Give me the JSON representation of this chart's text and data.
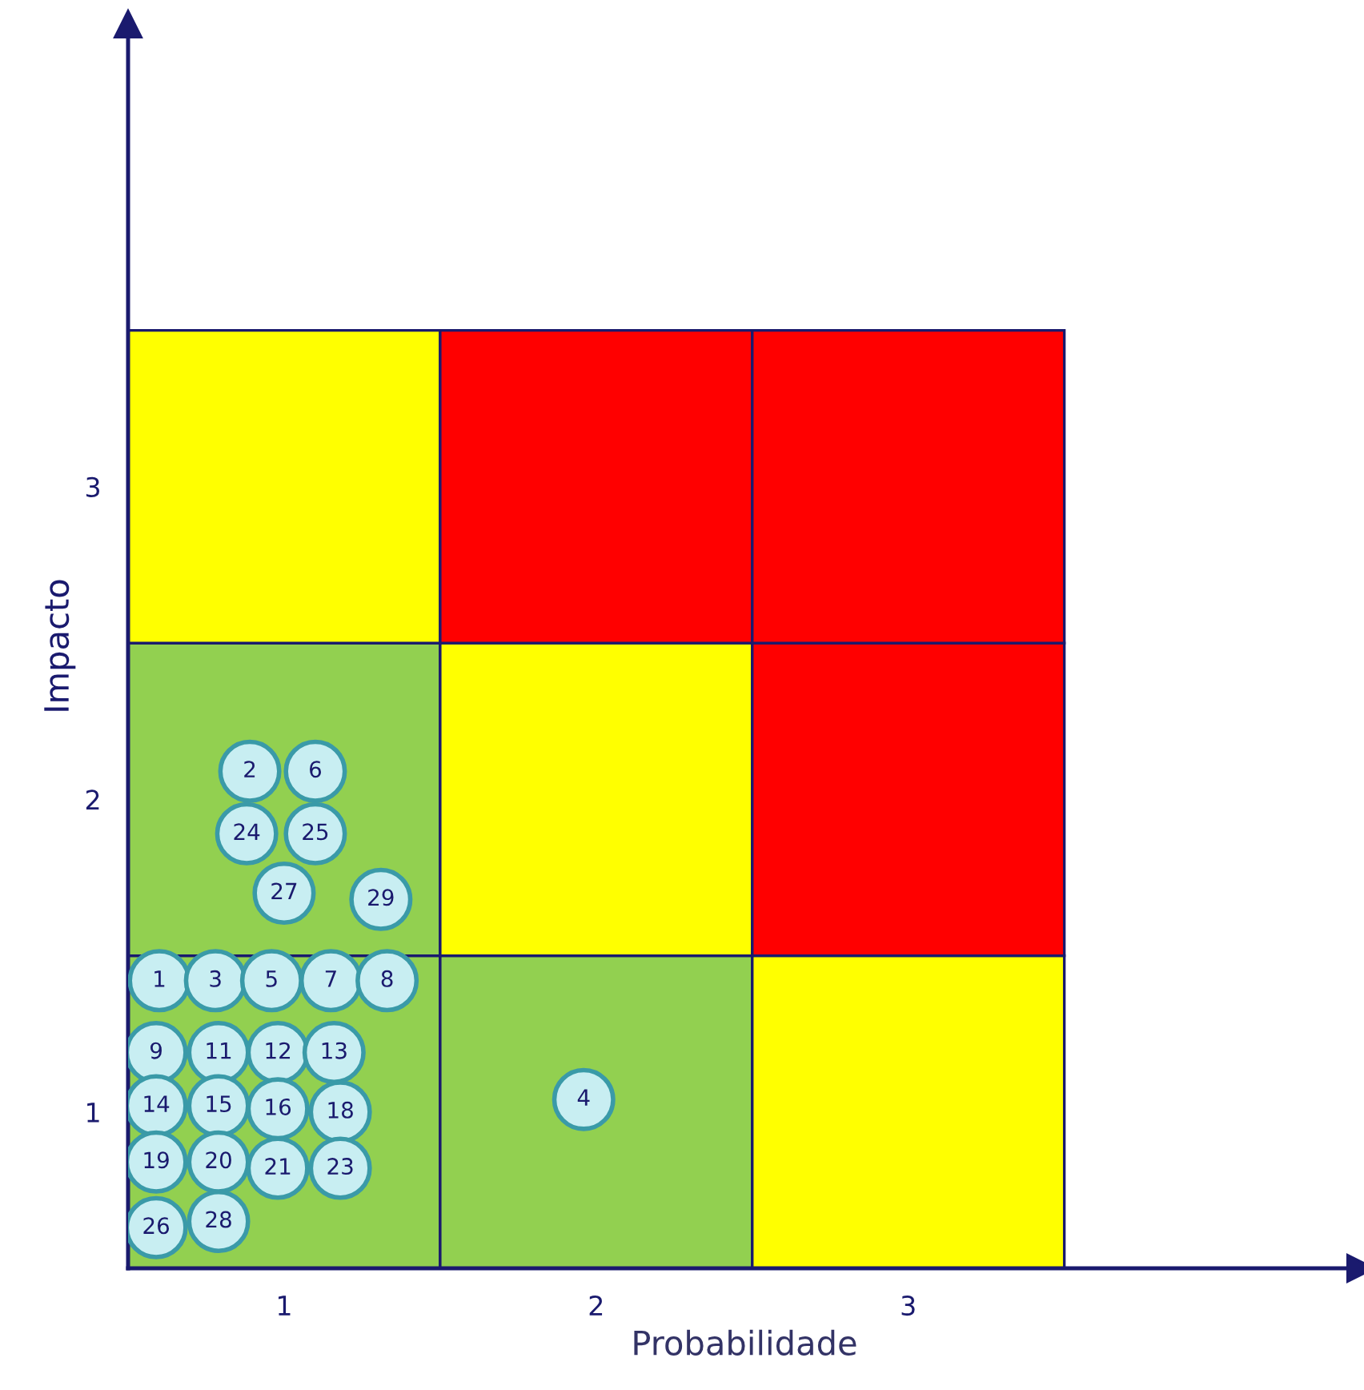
{
  "chart_data": {
    "type": "scatter",
    "xlabel": "Probabilidade",
    "ylabel": "Impacto",
    "xlim": [
      0.5,
      4.45
    ],
    "ylim": [
      0.5,
      4.48
    ],
    "xticks": [
      1,
      2,
      3
    ],
    "yticks": [
      1,
      2,
      3
    ],
    "x": [
      0.6,
      0.89,
      0.78,
      1.96,
      0.96,
      1.1,
      1.15,
      1.33,
      0.59,
      0.79,
      0.98,
      1.16,
      0.59,
      0.79,
      0.98,
      1.18,
      0.59,
      0.79,
      0.98,
      1.18,
      0.88,
      1.1,
      0.59,
      1.0,
      0.79,
      1.31
    ],
    "series": [
      {
        "color": "#c8eef2",
        "values": [
          1.42,
          2.09,
          1.42,
          1.04,
          1.42,
          2.09,
          1.42,
          1.42,
          1.19,
          1.19,
          1.19,
          1.19,
          1.02,
          1.02,
          1.01,
          1.0,
          0.84,
          0.84,
          0.82,
          0.82,
          1.89,
          1.89,
          0.63,
          1.7,
          0.65,
          1.68
        ]
      }
    ],
    "annotations": [
      {
        "text": "1",
        "x": 0.6,
        "y": 1.42
      },
      {
        "text": "2",
        "x": 0.89,
        "y": 2.09
      },
      {
        "text": "3",
        "x": 0.78,
        "y": 1.42
      },
      {
        "text": "4",
        "x": 1.96,
        "y": 1.04
      },
      {
        "text": "5",
        "x": 0.96,
        "y": 1.42
      },
      {
        "text": "6",
        "x": 1.1,
        "y": 2.09
      },
      {
        "text": "7",
        "x": 1.15,
        "y": 1.42
      },
      {
        "text": "8",
        "x": 1.33,
        "y": 1.42
      },
      {
        "text": "9",
        "x": 0.59,
        "y": 1.19
      },
      {
        "text": "11",
        "x": 0.79,
        "y": 1.19
      },
      {
        "text": "12",
        "x": 0.98,
        "y": 1.19
      },
      {
        "text": "13",
        "x": 1.16,
        "y": 1.19
      },
      {
        "text": "14",
        "x": 0.59,
        "y": 1.02
      },
      {
        "text": "15",
        "x": 0.79,
        "y": 1.02
      },
      {
        "text": "16",
        "x": 0.98,
        "y": 1.01
      },
      {
        "text": "18",
        "x": 1.18,
        "y": 1.0
      },
      {
        "text": "19",
        "x": 0.59,
        "y": 0.84
      },
      {
        "text": "20",
        "x": 0.79,
        "y": 0.84
      },
      {
        "text": "21",
        "x": 0.98,
        "y": 0.82
      },
      {
        "text": "23",
        "x": 1.18,
        "y": 0.82
      },
      {
        "text": "24",
        "x": 0.88,
        "y": 1.89
      },
      {
        "text": "25",
        "x": 1.1,
        "y": 1.89
      },
      {
        "text": "26",
        "x": 0.59,
        "y": 0.63
      },
      {
        "text": "27",
        "x": 1.0,
        "y": 1.7
      },
      {
        "text": "28",
        "x": 0.79,
        "y": 0.65
      },
      {
        "text": "29",
        "x": 1.31,
        "y": 1.68
      }
    ],
    "grid": false,
    "legend": false,
    "marker": "circle"
  }
}
